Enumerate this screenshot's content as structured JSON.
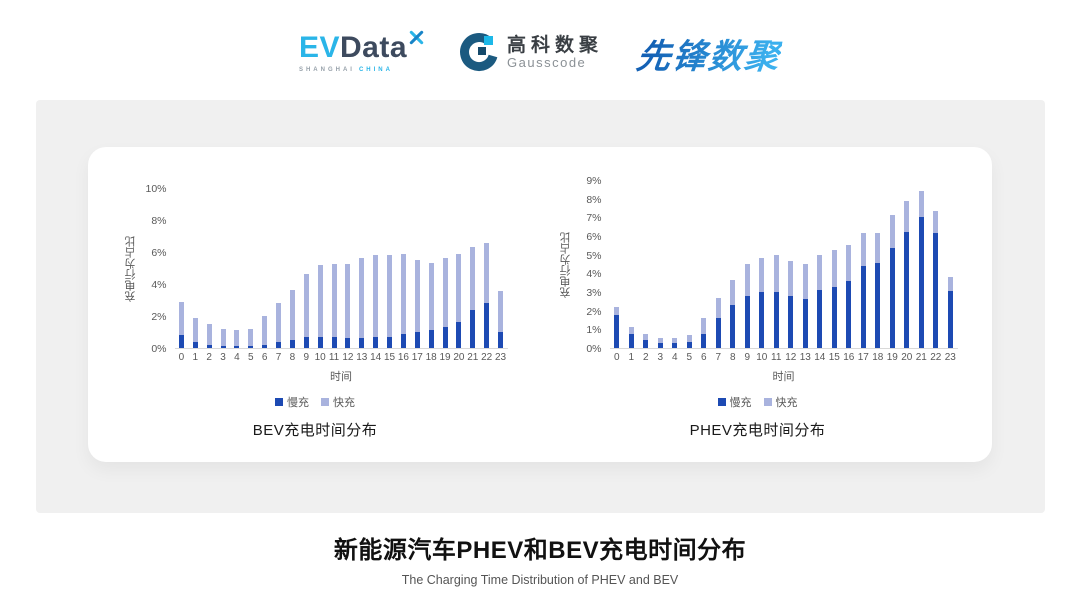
{
  "header": {
    "evdata": {
      "ev": "EV",
      "data": "Data",
      "sub_left": "SHANGHAI",
      "sub_right": "CHINA"
    },
    "gausscode": {
      "cn": "高科数聚",
      "en": "Gausscode"
    },
    "pioneer": {
      "text": "先锋数聚"
    }
  },
  "colors": {
    "slow_charge": "#1d4ab3",
    "fast_charge": "#a9b3de",
    "panel_bg": "#f0f0f0",
    "axis_text": "#595959",
    "evdata_blue": "#2ab5e8",
    "evdata_dark": "#3d4a5e",
    "gausscode_dark": "#1b5a80",
    "gausscode_cyan": "#1cb8e8",
    "pioneer_blue": "#2285d0"
  },
  "chart_data": [
    {
      "type": "bar",
      "stacked": true,
      "title": "BEV充电时间分布",
      "xlabel": "时间",
      "ylabel": "充电行为占比",
      "ylim": [
        0,
        10
      ],
      "ytick_step": 2,
      "ytick_format": "percent",
      "grid": false,
      "legend_position": "bottom",
      "categories": [
        0,
        1,
        2,
        3,
        4,
        5,
        6,
        7,
        8,
        9,
        10,
        11,
        12,
        13,
        14,
        15,
        16,
        17,
        18,
        19,
        20,
        21,
        22,
        23
      ],
      "series": [
        {
          "name": "慢充",
          "key": "slow",
          "color": "#1d4ab3",
          "values": [
            0.8,
            0.4,
            0.2,
            0.1,
            0.1,
            0.15,
            0.2,
            0.4,
            0.5,
            0.7,
            0.7,
            0.7,
            0.6,
            0.65,
            0.7,
            0.7,
            0.85,
            1.0,
            1.1,
            1.3,
            1.6,
            2.4,
            2.8,
            1.0
          ]
        },
        {
          "name": "快充",
          "key": "fast",
          "color": "#a9b3de",
          "values": [
            2.1,
            1.5,
            1.3,
            1.1,
            1.0,
            1.05,
            1.8,
            2.4,
            3.1,
            3.9,
            4.5,
            4.55,
            4.65,
            5.0,
            5.1,
            5.1,
            5.0,
            4.5,
            4.2,
            4.3,
            4.3,
            3.9,
            3.75,
            2.55
          ]
        }
      ]
    },
    {
      "type": "bar",
      "stacked": true,
      "title": "PHEV充电时间分布",
      "xlabel": "时间",
      "ylabel": "充电行为占比",
      "ylim": [
        0,
        9
      ],
      "ytick_step": 1,
      "ytick_format": "percent",
      "grid": false,
      "legend_position": "bottom",
      "categories": [
        0,
        1,
        2,
        3,
        4,
        5,
        6,
        7,
        8,
        9,
        10,
        11,
        12,
        13,
        14,
        15,
        16,
        17,
        18,
        19,
        20,
        21,
        22,
        23
      ],
      "series": [
        {
          "name": "慢充",
          "key": "slow",
          "color": "#1d4ab3",
          "values": [
            1.75,
            0.75,
            0.45,
            0.25,
            0.25,
            0.3,
            0.75,
            1.6,
            2.3,
            2.8,
            3.0,
            3.0,
            2.8,
            2.65,
            3.1,
            3.25,
            3.6,
            4.4,
            4.55,
            5.35,
            6.2,
            7.0,
            6.15,
            3.05
          ]
        },
        {
          "name": "快充",
          "key": "fast",
          "color": "#a9b3de",
          "values": [
            0.45,
            0.4,
            0.3,
            0.3,
            0.3,
            0.4,
            0.85,
            1.1,
            1.35,
            1.7,
            1.8,
            2.0,
            1.85,
            1.85,
            1.9,
            2.0,
            1.9,
            1.75,
            1.6,
            1.75,
            1.7,
            1.4,
            1.2,
            0.75
          ]
        }
      ]
    }
  ],
  "footer": {
    "title": "新能源汽车PHEV和BEV充电时间分布",
    "subtitle": "The Charging Time Distribution of PHEV and BEV"
  }
}
